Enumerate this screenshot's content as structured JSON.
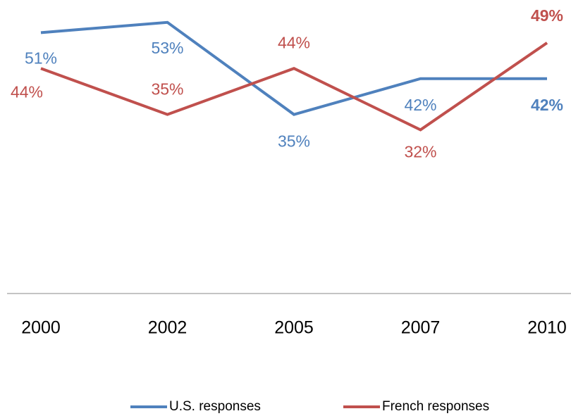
{
  "chart_data": {
    "type": "line",
    "categories": [
      "2000",
      "2002",
      "2005",
      "2007",
      "2010"
    ],
    "series": [
      {
        "name": "U.S. responses",
        "color": "#4f81bd",
        "values": [
          51,
          53,
          35,
          42,
          42
        ],
        "value_labels": [
          "51%",
          "53%",
          "35%",
          "42%",
          "42%"
        ]
      },
      {
        "name": "French responses",
        "color": "#c0504d",
        "values": [
          44,
          35,
          44,
          32,
          49
        ],
        "value_labels": [
          "44%",
          "35%",
          "44%",
          "32%",
          "49%"
        ]
      }
    ],
    "ylim": [
      0,
      56
    ]
  }
}
